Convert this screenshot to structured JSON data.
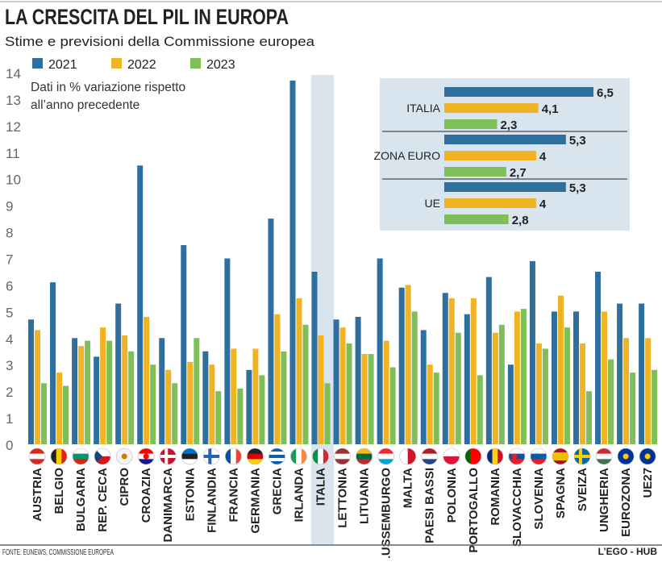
{
  "chart_data": {
    "type": "bar",
    "title": "LA CRESCITA DEL PIL IN EUROPA",
    "subtitle": "Stime e previsioni della Commissione europea",
    "note": [
      "Dati in % variazione rispetto",
      "all’anno precedente"
    ],
    "ylim": [
      0,
      14
    ],
    "yticks": [
      0,
      1,
      2,
      3,
      4,
      5,
      6,
      7,
      8,
      9,
      10,
      11,
      12,
      13,
      14
    ],
    "grid": false,
    "legend_placement": "top-left",
    "highlight": "ITALIA",
    "highlight_label_color": "#2a7bbf",
    "highlight_band_color": "#d9e5ee",
    "categories": [
      "AUSTRIA",
      "BELGIO",
      "BULGARIA",
      "REP. CECA",
      "CIPRO",
      "CROAZIA",
      "DANIMARCA",
      "ESTONIA",
      "FINLANDIA",
      "FRANCIA",
      "GERMANIA",
      "GRECIA",
      "IRLANDA",
      "ITALIA",
      "LETTONIA",
      "LITUANIA",
      "LUSSEMBURGO",
      "MALTA",
      "PAESI BASSI",
      "POLONIA",
      "PORTOGALLO",
      "ROMANIA",
      "SLOVACCHIA",
      "SLOVENIA",
      "SPAGNA",
      "SVEIZA",
      "UNGHERIA",
      "EUROZONA",
      "UE27"
    ],
    "series": [
      {
        "name": "2021",
        "color": "#2e6f9e",
        "values": [
          4.7,
          6.1,
          4.0,
          3.3,
          5.3,
          10.5,
          4.0,
          7.5,
          3.5,
          7.0,
          2.8,
          8.5,
          13.7,
          6.5,
          4.7,
          4.8,
          7.0,
          5.9,
          4.3,
          5.7,
          4.9,
          6.3,
          3.0,
          6.9,
          5.0,
          5.0,
          6.5,
          5.3,
          5.3
        ]
      },
      {
        "name": "2022",
        "color": "#f0b323",
        "values": [
          4.3,
          2.7,
          3.7,
          4.4,
          4.1,
          4.8,
          2.8,
          3.1,
          3.0,
          3.6,
          3.6,
          4.9,
          5.5,
          4.1,
          4.4,
          3.4,
          3.9,
          6.0,
          3.0,
          5.5,
          5.5,
          4.2,
          5.0,
          3.8,
          5.6,
          3.8,
          5.0,
          4.0,
          4.0
        ]
      },
      {
        "name": "2023",
        "color": "#7fbf5a",
        "values": [
          2.3,
          2.2,
          3.9,
          3.9,
          3.5,
          3.0,
          2.3,
          4.0,
          2.0,
          2.1,
          2.6,
          3.5,
          4.5,
          2.3,
          3.8,
          3.4,
          2.9,
          5.0,
          2.7,
          4.2,
          2.6,
          4.5,
          5.1,
          3.6,
          4.4,
          2.0,
          3.2,
          2.7,
          2.8
        ]
      }
    ],
    "flags": [
      {
        "dir": "h",
        "colors": [
          "#d52b1e",
          "#ffffff",
          "#d52b1e"
        ]
      },
      {
        "dir": "v",
        "colors": [
          "#222222",
          "#f5d000",
          "#e2231a"
        ]
      },
      {
        "dir": "h",
        "colors": [
          "#ffffff",
          "#00966e",
          "#d62612"
        ]
      },
      {
        "dir": "h",
        "colors": [
          "#ffffff",
          "#d7141a"
        ],
        "tri": "#11457e"
      },
      {
        "dir": "h",
        "colors": [
          "#f4f4f4",
          "#f4f4f4"
        ],
        "dot": "#d57800"
      },
      {
        "dir": "h",
        "colors": [
          "#ff0000",
          "#ffffff",
          "#171796"
        ],
        "dot": "#ff0000"
      },
      {
        "dir": "cross",
        "colors": [
          "#c8102e",
          "#ffffff"
        ]
      },
      {
        "dir": "h",
        "colors": [
          "#0072ce",
          "#222222",
          "#ffffff"
        ]
      },
      {
        "dir": "cross",
        "colors": [
          "#ffffff",
          "#2b5fb4"
        ]
      },
      {
        "dir": "v",
        "colors": [
          "#0055a4",
          "#ffffff",
          "#ef4135"
        ]
      },
      {
        "dir": "h",
        "colors": [
          "#222222",
          "#dd0000",
          "#ffce00"
        ]
      },
      {
        "dir": "h",
        "colors": [
          "#0d5eaf",
          "#ffffff",
          "#0d5eaf",
          "#ffffff",
          "#0d5eaf"
        ]
      },
      {
        "dir": "v",
        "colors": [
          "#169b62",
          "#ffffff",
          "#ff883e"
        ]
      },
      {
        "dir": "v",
        "colors": [
          "#009246",
          "#ffffff",
          "#ce2b37"
        ]
      },
      {
        "dir": "h",
        "colors": [
          "#9e3039",
          "#ffffff",
          "#9e3039"
        ]
      },
      {
        "dir": "h",
        "colors": [
          "#fdb913",
          "#006a44",
          "#c1272d"
        ]
      },
      {
        "dir": "h",
        "colors": [
          "#ed2939",
          "#ffffff",
          "#00a1de"
        ]
      },
      {
        "dir": "v",
        "colors": [
          "#ffffff",
          "#cf142b"
        ]
      },
      {
        "dir": "h",
        "colors": [
          "#ae1c28",
          "#ffffff",
          "#21468b"
        ]
      },
      {
        "dir": "h",
        "colors": [
          "#ffffff",
          "#dc143c"
        ]
      },
      {
        "dir": "v",
        "colors": [
          "#006600",
          "#ff0000",
          "#ff0000"
        ]
      },
      {
        "dir": "v",
        "colors": [
          "#002b7f",
          "#fcd116",
          "#ce1126"
        ]
      },
      {
        "dir": "h",
        "colors": [
          "#ffffff",
          "#0b4ea2",
          "#ee1c25"
        ],
        "dot": "#ee1c25"
      },
      {
        "dir": "h",
        "colors": [
          "#ffffff",
          "#005da4",
          "#ed1c24"
        ],
        "dot": "#005da4"
      },
      {
        "dir": "h",
        "colors": [
          "#aa151b",
          "#f1bf00",
          "#f1bf00",
          "#aa151b"
        ]
      },
      {
        "dir": "cross",
        "colors": [
          "#006aa7",
          "#fecc00"
        ]
      },
      {
        "dir": "h",
        "colors": [
          "#ce2939",
          "#ffffff",
          "#477050"
        ]
      },
      {
        "dir": "h",
        "colors": [
          "#003399",
          "#003399"
        ],
        "dot": "#ffcc00"
      },
      {
        "dir": "h",
        "colors": [
          "#003399",
          "#003399"
        ],
        "dot": "#ffcc00"
      }
    ],
    "inset": {
      "groups": [
        {
          "label": "ITALIA",
          "values": [
            6.5,
            4.1,
            2.3
          ],
          "value_labels": [
            "6,5",
            "4,1",
            "2,3"
          ]
        },
        {
          "label": "ZONA EURO",
          "values": [
            5.3,
            4,
            2.7
          ],
          "value_labels": [
            "5,3",
            "4",
            "2,7"
          ]
        },
        {
          "label": "UE",
          "values": [
            5.3,
            4,
            2.8
          ],
          "value_labels": [
            "5,3",
            "4",
            "2,8"
          ]
        }
      ],
      "background": "#d9e5ee"
    },
    "source": "FONTE: EUNEWS, COMMISSIONE EUROPEA",
    "brand": "L’EGO - HUB"
  }
}
